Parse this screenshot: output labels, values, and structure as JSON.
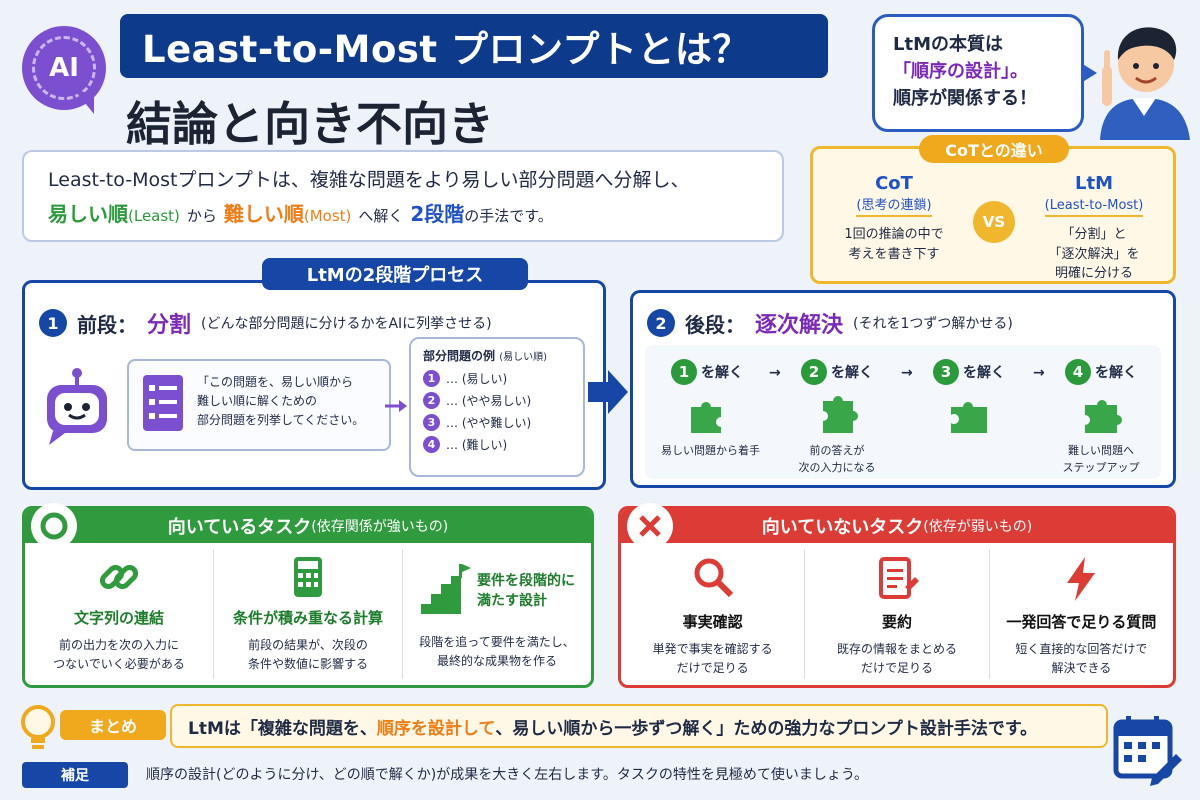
{
  "header": {
    "badge": "AI",
    "title": "Least-to-Most プロンプトとは？",
    "subtitle": "結論と向き不向き"
  },
  "speech": {
    "line1": "LtMの本質は",
    "line2": "「順序の設計」。",
    "line3": "順序が関係する！"
  },
  "intro": {
    "line1": "Least-to-Mostプロンプトは、複雑な問題をより易しい部分問題へ分解し、",
    "easy": "易しい順",
    "easy_en": "(Least)",
    "kara": "から",
    "hard": "難しい順",
    "hard_en": "(Most)",
    "he": "へ解く",
    "two": "2段階",
    "tail": "の手法です。"
  },
  "cot": {
    "title": "CoTとの違い",
    "vs": "VS",
    "left": {
      "name": "CoT",
      "sub": "(思考の連鎖)",
      "desc1": "1回の推論の中で",
      "desc2": "考えを書き下す"
    },
    "right": {
      "name": "LtM",
      "sub": "(Least-to-Most)",
      "desc1": "「分割」と",
      "desc2": "「逐次解決」を",
      "desc3": "明確に分ける"
    }
  },
  "process": {
    "label": "LtMの2段階プロセス",
    "phase1": {
      "num": "1",
      "name": "前段：",
      "key": "分割",
      "note": "(どんな部分問題に分けるかをAIに列挙させる)",
      "prompt1": "「この問題を、易しい順から",
      "prompt2": "難しい順に解くための",
      "prompt3": "部分問題を列挙してください。",
      "sub_title": "部分問題の例",
      "sub_note": "(易しい順)",
      "items": [
        {
          "n": "1",
          "t": "… (易しい)"
        },
        {
          "n": "2",
          "t": "… (やや易しい)"
        },
        {
          "n": "3",
          "t": "… (やや難しい)"
        },
        {
          "n": "4",
          "t": "… (難しい)"
        }
      ]
    },
    "phase2": {
      "num": "2",
      "name": "後段：",
      "key": "逐次解決",
      "note": "(それを1つずつ解かせる)",
      "steps": [
        {
          "n": "1",
          "label": "を解く",
          "cap1": "易しい問題から着手",
          "cap2": ""
        },
        {
          "n": "2",
          "label": "を解く",
          "cap1": "前の答えが",
          "cap2": "次の入力になる"
        },
        {
          "n": "3",
          "label": "を解く",
          "cap1": "",
          "cap2": ""
        },
        {
          "n": "4",
          "label": "を解く",
          "cap1": "難しい問題へ",
          "cap2": "ステップアップ"
        }
      ]
    }
  },
  "suitable": {
    "title": "向いているタスク",
    "note": "(依存関係が強いもの)",
    "items": [
      {
        "title": "文字列の連結",
        "d1": "前の出力を次の入力に",
        "d2": "つないでいく必要がある"
      },
      {
        "title": "条件が積み重なる計算",
        "d1": "前段の結果が、次段の",
        "d2": "条件や数値に影響する"
      },
      {
        "title1": "要件を段階的に",
        "title2": "満たす設計",
        "d1": "段階を追って要件を満たし、",
        "d2": "最終的な成果物を作る"
      }
    ]
  },
  "unsuitable": {
    "title": "向いていないタスク",
    "note": "(依存が弱いもの)",
    "items": [
      {
        "title": "事実確認",
        "d1": "単発で事実を確認する",
        "d2": "だけで足りる"
      },
      {
        "title": "要約",
        "d1": "既存の情報をまとめる",
        "d2": "だけで足りる"
      },
      {
        "title": "一発回答で足りる質問",
        "d1": "短く直接的な回答だけで",
        "d2": "解決できる"
      }
    ]
  },
  "summary": {
    "label": "まとめ",
    "pre": "LtMは「複雑な問題を、",
    "hl": "順序を設計して",
    "post": "、易しい順から一歩ずつ解く」ための強力なプロンプト設計手法です。"
  },
  "supplement": {
    "label": "補足",
    "text": "順序の設計(どのように分け、どの順で解くか)が成果を大きく左右します。タスクの特性を見極めて使いましょう。"
  }
}
